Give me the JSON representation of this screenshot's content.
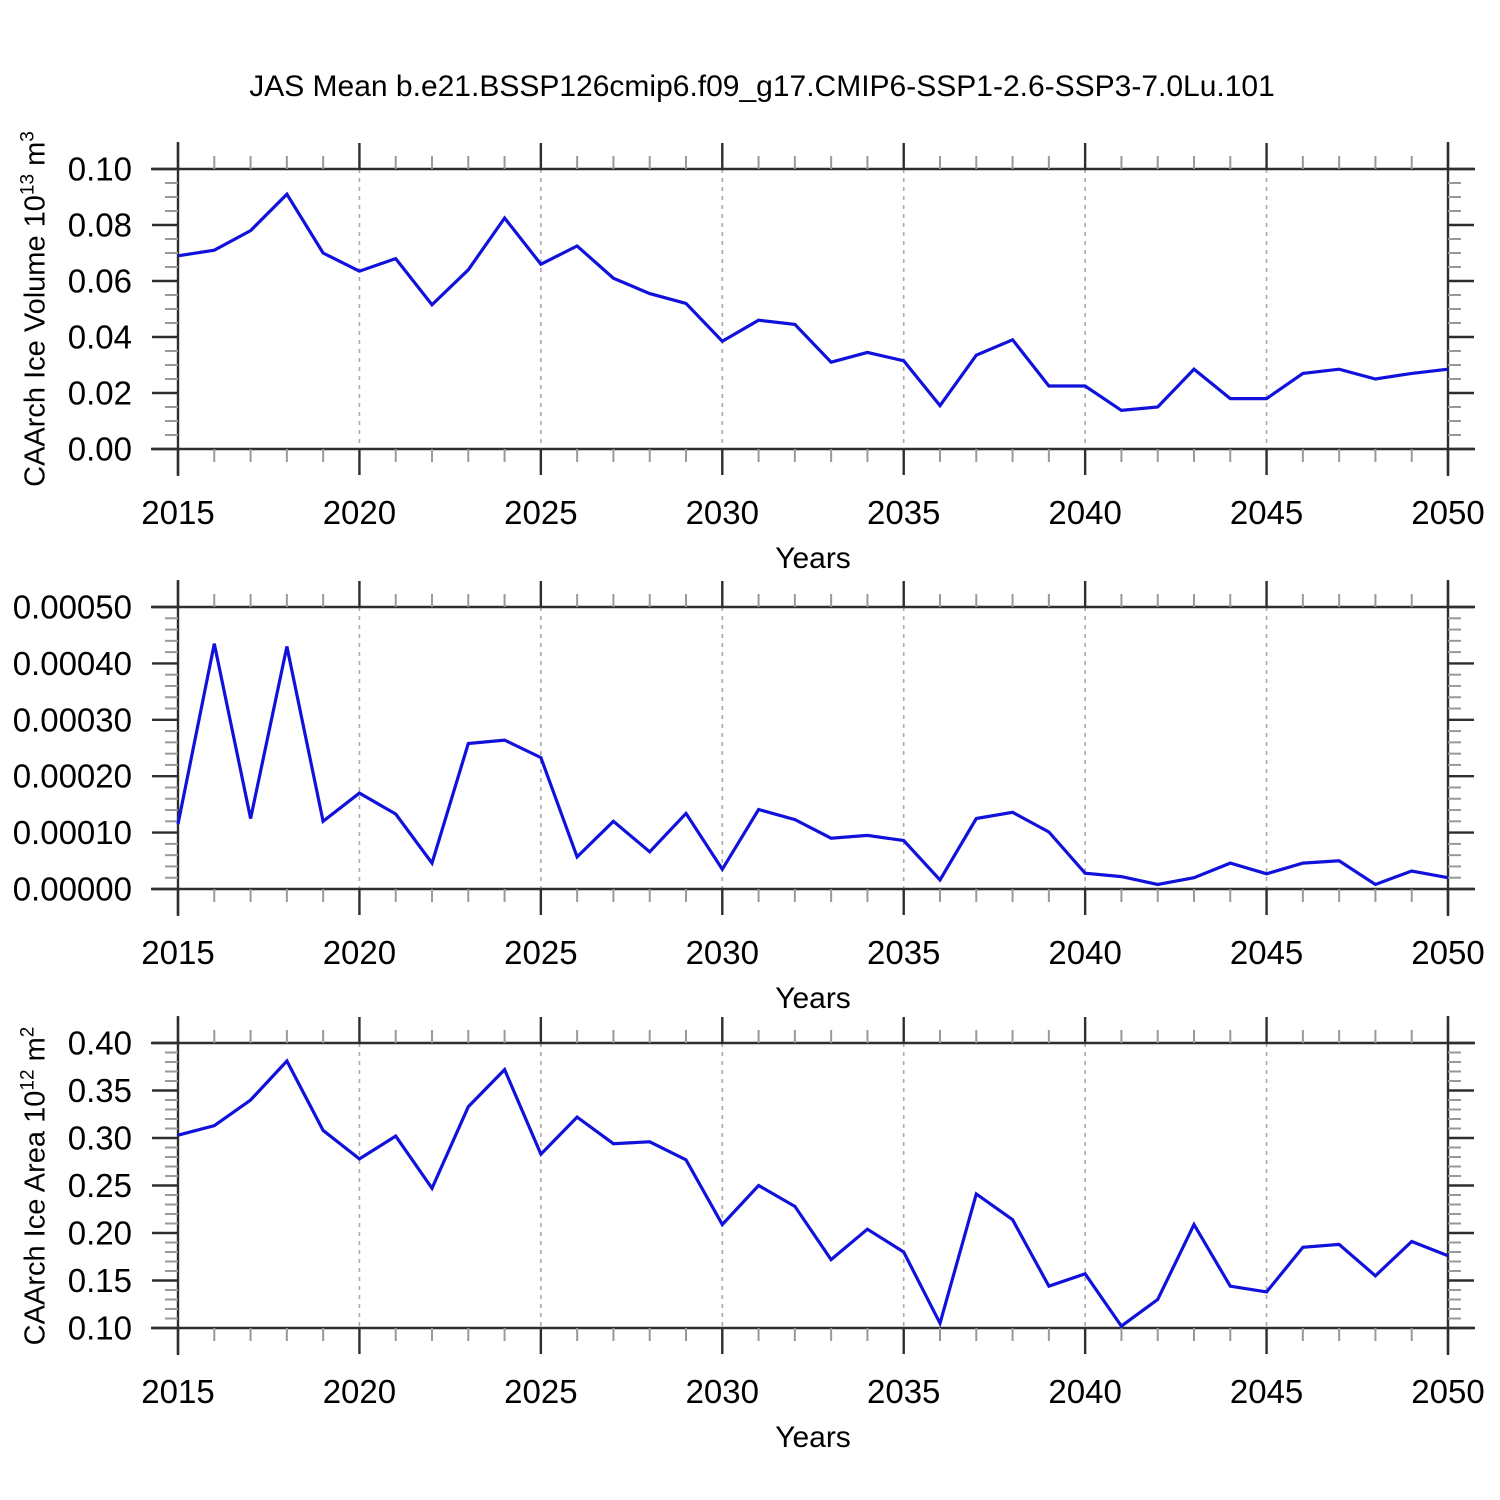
{
  "title": "JAS Mean b.e21.BSSP126cmip6.f09_g17.CMIP6-SSP1-2.6-SSP3-7.0Lu.101",
  "colors": {
    "line": "#1111DC",
    "axis": "#2e2e2e",
    "minor_tick": "#999999",
    "gridline": "#aaaaaa",
    "background": "#ffffff"
  },
  "x_axis": {
    "label": "Years",
    "years": [
      2015,
      2016,
      2017,
      2018,
      2019,
      2020,
      2021,
      2022,
      2023,
      2024,
      2025,
      2026,
      2027,
      2028,
      2029,
      2030,
      2031,
      2032,
      2033,
      2034,
      2035,
      2036,
      2037,
      2038,
      2039,
      2040,
      2041,
      2042,
      2043,
      2044,
      2045,
      2046,
      2047,
      2048,
      2049,
      2050
    ],
    "tick_years": [
      2015,
      2020,
      2025,
      2030,
      2035,
      2040,
      2045,
      2050
    ],
    "tick_labels": [
      "2015",
      "2020",
      "2025",
      "2030",
      "2035",
      "2040",
      "2045",
      "2050"
    ],
    "gridline_years": [
      2020,
      2025,
      2030,
      2035,
      2040,
      2045
    ],
    "xlim": [
      2015,
      2050
    ]
  },
  "chart_data": [
    {
      "type": "line",
      "name": "caarch-ice-volume",
      "ylabel": {
        "base": "CAArch Ice Volume 10",
        "exp1": "13",
        "mid": " m",
        "exp2": "3"
      },
      "ylim": [
        0.0,
        0.1
      ],
      "ytick_labels": [
        "0.00",
        "0.02",
        "0.04",
        "0.06",
        "0.08",
        "0.10"
      ],
      "y_minor_step": 0.005,
      "values": [
        0.069,
        0.071,
        0.078,
        0.091,
        0.07,
        0.0635,
        0.068,
        0.0515,
        0.064,
        0.0825,
        0.066,
        0.0725,
        0.061,
        0.0555,
        0.052,
        0.0385,
        0.046,
        0.0445,
        0.031,
        0.0345,
        0.0315,
        0.0155,
        0.0335,
        0.039,
        0.0225,
        0.0225,
        0.0138,
        0.015,
        0.0285,
        0.018,
        0.018,
        0.027,
        0.0285,
        0.025,
        0.027,
        0.0285
      ]
    },
    {
      "type": "line",
      "name": "caarch-ice-middle-series",
      "ylabel": null,
      "ylim": [
        0.0,
        0.0005
      ],
      "ytick_labels": [
        "0.00000",
        "0.00010",
        "0.00020",
        "0.00030",
        "0.00040",
        "0.00050"
      ],
      "y_minor_step": 2e-05,
      "values": [
        0.000115,
        0.000435,
        0.000125,
        0.00043,
        0.00012,
        0.00017,
        0.000133,
        4.6e-05,
        0.000258,
        0.000264,
        0.000233,
        5.7e-05,
        0.00012,
        6.6e-05,
        0.000134,
        3.5e-05,
        0.000141,
        0.000123,
        9e-05,
        9.5e-05,
        8.6e-05,
        1.6e-05,
        0.000125,
        0.000136,
        0.000101,
        2.8e-05,
        2.2e-05,
        8e-06,
        2e-05,
        4.6e-05,
        2.7e-05,
        4.6e-05,
        5e-05,
        8e-06,
        3.2e-05,
        2e-05
      ]
    },
    {
      "type": "line",
      "name": "caarch-ice-area",
      "ylabel": {
        "base": "CAArch Ice Area 10",
        "exp1": "12",
        "mid": " m",
        "exp2": "2"
      },
      "ylim": [
        0.1,
        0.4
      ],
      "ytick_labels": [
        "0.10",
        "0.15",
        "0.20",
        "0.25",
        "0.30",
        "0.35",
        "0.40"
      ],
      "y_minor_step": 0.01,
      "values": [
        0.303,
        0.313,
        0.34,
        0.381,
        0.308,
        0.278,
        0.302,
        0.247,
        0.333,
        0.372,
        0.283,
        0.322,
        0.294,
        0.296,
        0.277,
        0.209,
        0.25,
        0.228,
        0.172,
        0.204,
        0.18,
        0.105,
        0.241,
        0.214,
        0.144,
        0.157,
        0.102,
        0.13,
        0.209,
        0.144,
        0.138,
        0.185,
        0.188,
        0.155,
        0.191,
        0.176
      ]
    }
  ]
}
